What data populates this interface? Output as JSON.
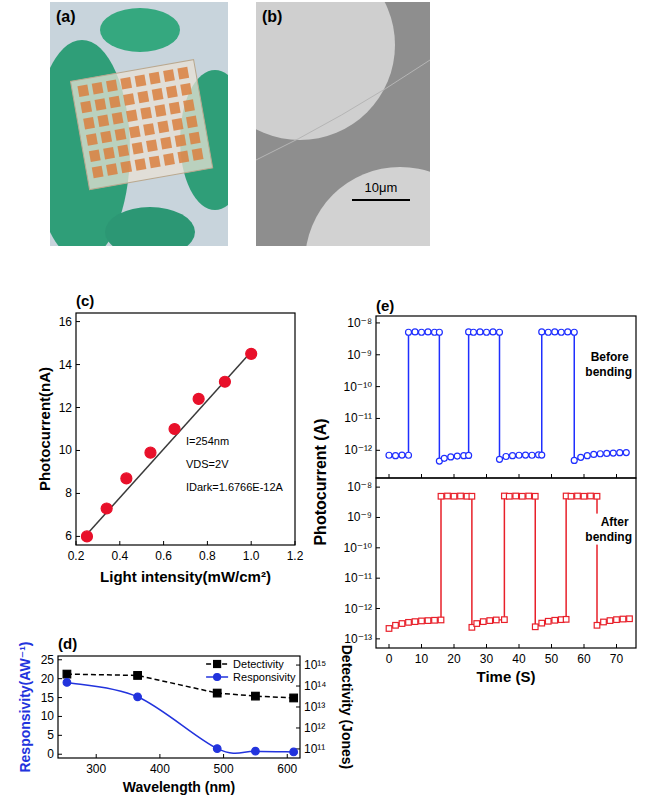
{
  "images": [
    {
      "title": "(a)"
    },
    {
      "title": "(b)",
      "scale_bar": "10μm"
    }
  ],
  "chart_data": [
    {
      "type": "scatter",
      "title": "(c)",
      "x_label": "Light intensity(mW/cm²)",
      "y_label": "Photocurrent(nA)",
      "annotations": [
        "I=254nm",
        "VDS=2V",
        "IDark=1.6766E-12A"
      ],
      "series": [
        {
          "type": "line",
          "color": "#3a3a3a",
          "line_style": "solid",
          "x": [
            0.25,
            1.0
          ],
          "values": [
            6.1,
            14.6
          ]
        },
        {
          "type": "scatter",
          "color": "#e8102a",
          "marker": "circle",
          "x": [
            0.25,
            0.34,
            0.43,
            0.54,
            0.65,
            0.76,
            0.88,
            1.0
          ],
          "values": [
            6.0,
            7.3,
            8.7,
            9.9,
            11.0,
            12.4,
            13.2,
            14.5
          ]
        }
      ],
      "xlim": [
        0.2,
        1.2
      ],
      "xticks": [
        0.2,
        0.4,
        0.6,
        0.8,
        {
          "value": 1,
          "label": "1.0"
        },
        1.2
      ],
      "ylim": [
        5.6,
        16.4
      ],
      "yticks": [
        6,
        8,
        10,
        12,
        14,
        16
      ]
    },
    {
      "type": "line",
      "title": "(d)",
      "x_label": "Wavelength (nm)",
      "y_label": "Responsivity(AW⁻¹)",
      "y2_label": "Detectivity (Jones)",
      "legend": "top-right",
      "log": "y2",
      "series": [
        {
          "name": "Detectivity",
          "color": "#000000",
          "marker": "square",
          "line_style": "dashed",
          "axis": "y2",
          "x": [
            254,
            365,
            490,
            550,
            610
          ],
          "values": [
            370000000000000.0,
            320000000000000.0,
            46000000000000.0,
            33000000000000.0,
            27000000000000.0
          ]
        },
        {
          "name": "Responsivity",
          "color": "#2233dd",
          "marker": "circle",
          "line_style": "smooth",
          "x": [
            254,
            365,
            490,
            550,
            610
          ],
          "values": [
            19,
            15.2,
            1.5,
            0.8,
            0.6
          ]
        }
      ],
      "xlim": [
        240,
        620
      ],
      "xticks": [
        300,
        400,
        500,
        600
      ],
      "ylim": [
        -1,
        26
      ],
      "yticks": [
        0,
        5,
        10,
        15,
        20,
        25
      ],
      "y2lim": [
        37000000000.0,
        2700000000000000.0
      ],
      "y2ticks": [
        {
          "value": 100000000000.0,
          "label": "10¹¹"
        },
        {
          "value": 1000000000000.0,
          "label": "10¹²"
        },
        {
          "value": 10000000000000.0,
          "label": "10¹³"
        },
        {
          "value": 100000000000000.0,
          "label": "10¹⁴"
        },
        {
          "value": 1000000000000000.0,
          "label": "10¹⁵"
        }
      ]
    },
    {
      "type": "line",
      "title": "(e)",
      "y_label": "Photocurrent (A)",
      "annotations": [
        "Before bending"
      ],
      "log": "y",
      "tick_labels": "y",
      "series": [
        {
          "color": "#1f2fff",
          "marker": "circle",
          "line_style": "solid",
          "x": [
            0,
            2,
            4,
            6,
            6,
            8,
            10,
            12,
            14,
            15.5,
            15.5,
            17,
            19,
            21,
            23,
            24.5,
            24.5,
            26,
            28,
            30,
            32,
            34,
            34,
            36,
            38,
            40,
            42,
            44,
            46,
            47,
            47,
            49,
            51,
            53,
            55,
            57,
            57,
            59,
            61,
            63,
            65,
            67,
            69,
            71,
            73
          ],
          "values": [
            7e-13,
            6.8e-13,
            7.1e-13,
            7e-13,
            5.1e-09,
            5.2e-09,
            5.1e-09,
            5.2e-09,
            5.1e-09,
            5.1e-09,
            4.6e-13,
            5.6e-13,
            6.2e-13,
            6.6e-13,
            6.8e-13,
            6.9e-13,
            5.2e-09,
            5.1e-09,
            5.2e-09,
            5.1e-09,
            5.2e-09,
            5.1e-09,
            5.2e-13,
            6.4e-13,
            6.8e-13,
            7e-13,
            7.1e-13,
            7e-13,
            7.2e-13,
            7.1e-13,
            5.2e-09,
            5.1e-09,
            5.2e-09,
            5.1e-09,
            5.2e-09,
            5.1e-09,
            4.8e-13,
            6e-13,
            6.8e-13,
            7.4e-13,
            7.8e-13,
            8e-13,
            8.2e-13,
            8.4e-13,
            8.5e-13
          ]
        }
      ],
      "xlim": [
        -4,
        76
      ],
      "xticks": [
        0,
        10,
        20,
        30,
        40,
        50,
        60,
        70
      ],
      "ylim": [
        1.35e-13,
        1.65e-08
      ],
      "yticks": [
        {
          "value": 1e-08,
          "label": "10⁻⁸"
        },
        {
          "value": 1e-09,
          "label": "10⁻⁹"
        },
        {
          "value": 1e-10,
          "label": "10⁻¹⁰"
        },
        {
          "value": 1e-11,
          "label": "10⁻¹¹"
        },
        {
          "value": 1e-12,
          "label": "10⁻¹²"
        }
      ]
    },
    {
      "type": "line",
      "x_label": "Time (S)",
      "annotations": [
        "After bending"
      ],
      "log": "y",
      "series": [
        {
          "color": "#e8202a",
          "marker": "square",
          "line_style": "solid",
          "x": [
            0,
            2,
            4,
            6,
            8,
            10,
            12,
            14,
            16,
            16,
            18,
            20,
            22,
            24,
            25.5,
            25.5,
            27,
            29,
            31,
            33,
            35.5,
            35.5,
            37,
            39,
            41,
            43,
            45,
            45,
            47,
            49,
            51,
            53,
            54.5,
            54.5,
            56,
            58,
            60,
            62,
            64,
            64,
            66,
            68,
            70,
            72,
            74
          ],
          "values": [
            2.2e-13,
            2.8e-13,
            3.2e-13,
            3.5e-13,
            3.7e-13,
            3.9e-13,
            4e-13,
            4.1e-13,
            4.2e-13,
            5e-09,
            5.1e-09,
            5e-09,
            5.1e-09,
            5e-09,
            5e-09,
            2.4e-13,
            3.2e-13,
            3.7e-13,
            4e-13,
            4.2e-13,
            4.3e-13,
            5.1e-09,
            5e-09,
            5.1e-09,
            5e-09,
            5.1e-09,
            5e-09,
            2.5e-13,
            3.3e-13,
            3.8e-13,
            4.1e-13,
            4.3e-13,
            4.4e-13,
            5.1e-09,
            5e-09,
            5.1e-09,
            5e-09,
            5.1e-09,
            5e-09,
            2.8e-13,
            3.6e-13,
            4e-13,
            4.3e-13,
            4.5e-13,
            4.6e-13
          ]
        }
      ],
      "xlim": [
        -4,
        76
      ],
      "xticks": [
        0,
        10,
        20,
        30,
        40,
        50,
        60,
        70
      ],
      "ylim": [
        5e-14,
        2e-08
      ],
      "yticks": [
        {
          "value": 1e-08,
          "label": "10⁻⁸"
        },
        {
          "value": 1e-09,
          "label": "10⁻⁹"
        },
        {
          "value": 1e-10,
          "label": "10⁻¹⁰"
        },
        {
          "value": 1e-11,
          "label": "10⁻¹¹"
        },
        {
          "value": 1e-12,
          "label": "10⁻¹²"
        },
        {
          "value": 1e-13,
          "label": "10⁻¹³"
        }
      ]
    }
  ]
}
